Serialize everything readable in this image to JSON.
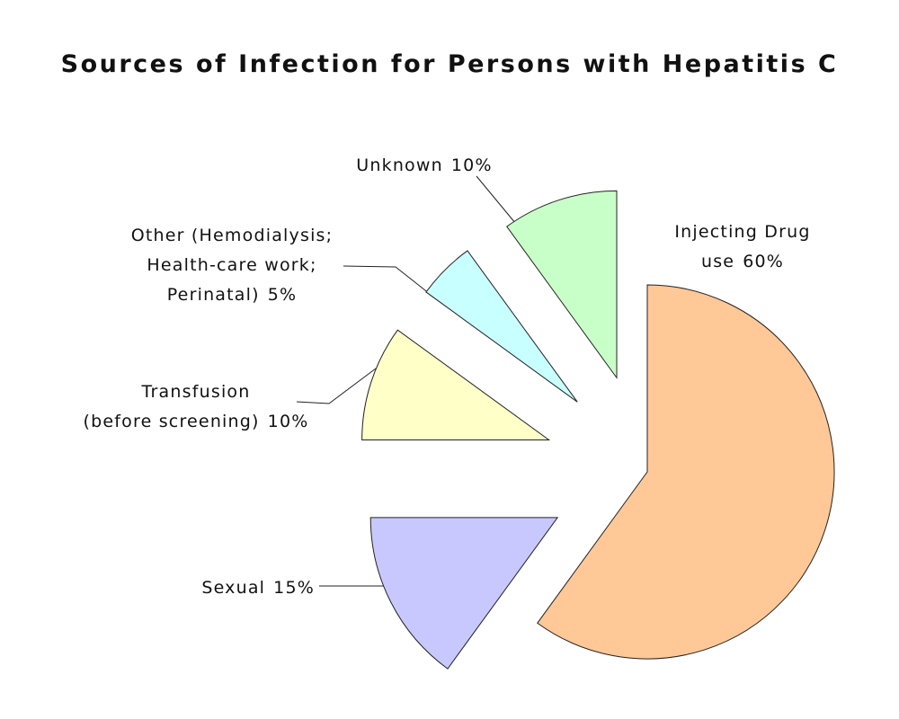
{
  "chart_data": {
    "type": "pie",
    "title": "Sources of Infection for Persons with Hepatitis C",
    "categories": [
      [
        "Injecting Drug",
        "use"
      ],
      [
        "Sexual"
      ],
      [
        "Transfusion",
        "(before screening)"
      ],
      [
        "Other (Hemodialysis;",
        "Health-care work;",
        "Perinatal)"
      ],
      [
        "Unknown"
      ]
    ],
    "values": [
      60,
      15,
      10,
      5,
      10
    ],
    "value_labels": [
      "60%",
      "15%",
      "10%",
      "5%",
      "10%"
    ],
    "colors": [
      "#ffc896",
      "#c8c8ff",
      "#ffffc8",
      "#c8ffff",
      "#c8ffc8"
    ]
  }
}
